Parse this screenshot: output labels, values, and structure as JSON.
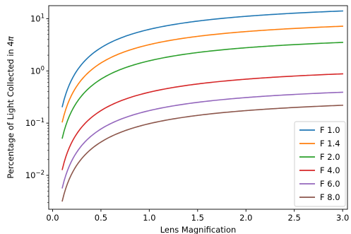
{
  "chart_data": {
    "type": "line",
    "title": "",
    "xlabel": "Lens Magnification",
    "ylabel_parts": [
      "Percentage of Light Collected in 4",
      "π"
    ],
    "xlim": [
      -0.04,
      3.05
    ],
    "ylim_log10": [
      -2.65,
      1.25
    ],
    "x_ticks": [
      0.0,
      0.5,
      1.0,
      1.5,
      2.0,
      2.5,
      3.0
    ],
    "x_tick_labels": [
      "0.0",
      "0.5",
      "1.0",
      "1.5",
      "2.0",
      "2.5",
      "3.0"
    ],
    "y_scale": "log",
    "y_ticks": [
      {
        "value": 0.01,
        "base": "10",
        "exp": "−2"
      },
      {
        "value": 0.1,
        "base": "10",
        "exp": "−1"
      },
      {
        "value": 1,
        "base": "10",
        "exp": "0"
      },
      {
        "value": 10,
        "base": "10",
        "exp": "1"
      }
    ],
    "grid": false,
    "legend_position": "lower-right",
    "x_range": [
      0.1,
      3.0
    ],
    "model": "percent = 25 * m^2 / (N^2 * (1 + m)^2)",
    "series": [
      {
        "name": "F 1.0",
        "fnumber": 1.0,
        "color": "#1f77b4",
        "y_at_0_1": 0.207,
        "y_at_1_0": 6.25,
        "y_at_3_0": 14.06
      },
      {
        "name": "F 1.4",
        "fnumber": 1.4,
        "color": "#ff7f0e",
        "y_at_0_1": 0.105,
        "y_at_1_0": 3.19,
        "y_at_3_0": 7.17
      },
      {
        "name": "F 2.0",
        "fnumber": 2.0,
        "color": "#2ca02c",
        "y_at_0_1": 0.052,
        "y_at_1_0": 1.56,
        "y_at_3_0": 3.52
      },
      {
        "name": "F 4.0",
        "fnumber": 4.0,
        "color": "#d62728",
        "y_at_0_1": 0.013,
        "y_at_1_0": 0.39,
        "y_at_3_0": 0.88
      },
      {
        "name": "F 6.0",
        "fnumber": 6.0,
        "color": "#9467bd",
        "y_at_0_1": 0.0057,
        "y_at_1_0": 0.174,
        "y_at_3_0": 0.39
      },
      {
        "name": "F 8.0",
        "fnumber": 8.0,
        "color": "#8c564b",
        "y_at_0_1": 0.0032,
        "y_at_1_0": 0.098,
        "y_at_3_0": 0.22
      }
    ]
  }
}
